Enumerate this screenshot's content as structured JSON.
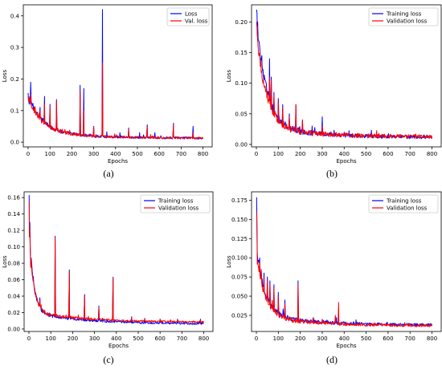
{
  "chart_data": [
    {
      "panel": "(a)",
      "type": "line",
      "xlabel": "Epochs",
      "ylabel": "Loss",
      "xlim": [
        -22,
        842
      ],
      "ylim": [
        -0.015,
        0.435
      ],
      "xticks": [
        "0",
        "100",
        "200",
        "300",
        "400",
        "500",
        "600",
        "700",
        "800"
      ],
      "yticks": [
        "0.0",
        "0.1",
        "0.2",
        "0.3",
        "0.4"
      ],
      "legend": {
        "position": "top-right",
        "entries": [
          "Loss",
          "Val. loss"
        ]
      },
      "series": [
        {
          "name": "Loss",
          "color": "#0000ff",
          "base": {
            "start": 0.13,
            "mid": 0.035,
            "end": 0.012,
            "decay": 60,
            "noise": 0.01
          },
          "spikes": [
            [
              2,
              0.135
            ],
            [
              5,
              0.12
            ],
            [
              12,
              0.19
            ],
            [
              55,
              0.11
            ],
            [
              75,
              0.145
            ],
            [
              100,
              0.12
            ],
            [
              130,
              0.135
            ],
            [
              238,
              0.18
            ],
            [
              255,
              0.17
            ],
            [
              300,
              0.05
            ],
            [
              340,
              0.42
            ],
            [
              420,
              0.03
            ],
            [
              460,
              0.045
            ],
            [
              510,
              0.03
            ],
            [
              545,
              0.055
            ],
            [
              580,
              0.03
            ],
            [
              665,
              0.06
            ],
            [
              755,
              0.05
            ]
          ]
        },
        {
          "name": "Val. loss",
          "color": "#ff0000",
          "base": {
            "start": 0.12,
            "mid": 0.034,
            "end": 0.012,
            "decay": 60,
            "noise": 0.009
          },
          "spikes": [
            [
              2,
              0.13
            ],
            [
              12,
              0.15
            ],
            [
              55,
              0.1
            ],
            [
              75,
              0.12
            ],
            [
              100,
              0.11
            ],
            [
              130,
              0.13
            ],
            [
              238,
              0.16
            ],
            [
              255,
              0.1
            ],
            [
              300,
              0.048
            ],
            [
              340,
              0.25
            ],
            [
              460,
              0.04
            ],
            [
              545,
              0.05
            ],
            [
              665,
              0.055
            ],
            [
              755,
              0.03
            ]
          ]
        }
      ]
    },
    {
      "panel": "(b)",
      "type": "line",
      "xlabel": "Epochs",
      "ylabel": "Loss",
      "xlim": [
        -22,
        842
      ],
      "ylim": [
        -0.004,
        0.228
      ],
      "xticks": [
        "0",
        "100",
        "200",
        "300",
        "400",
        "500",
        "600",
        "700",
        "800"
      ],
      "yticks": [
        "0.00",
        "0.05",
        "0.10",
        "0.15",
        "0.20"
      ],
      "legend": {
        "position": "top-right",
        "entries": [
          "Training loss",
          "Validation loss"
        ]
      },
      "series": [
        {
          "name": "Training loss",
          "color": "#0000ff",
          "base": {
            "start": 0.19,
            "mid": 0.03,
            "end": 0.011,
            "decay": 45,
            "noise": 0.008
          },
          "spikes": [
            [
              1,
              0.22
            ],
            [
              3,
              0.215
            ],
            [
              6,
              0.2
            ],
            [
              25,
              0.145
            ],
            [
              45,
              0.1
            ],
            [
              60,
              0.14
            ],
            [
              68,
              0.11
            ],
            [
              80,
              0.085
            ],
            [
              100,
              0.075
            ],
            [
              120,
              0.065
            ],
            [
              150,
              0.05
            ],
            [
              180,
              0.065
            ],
            [
              210,
              0.04
            ],
            [
              300,
              0.045
            ],
            [
              400,
              0.02
            ]
          ]
        },
        {
          "name": "Validation loss",
          "color": "#ff0000",
          "base": {
            "start": 0.17,
            "mid": 0.028,
            "end": 0.012,
            "decay": 45,
            "noise": 0.009
          },
          "spikes": [
            [
              1,
              0.2
            ],
            [
              3,
              0.19
            ],
            [
              6,
              0.17
            ],
            [
              25,
              0.12
            ],
            [
              45,
              0.09
            ],
            [
              60,
              0.11
            ],
            [
              68,
              0.105
            ],
            [
              80,
              0.08
            ],
            [
              100,
              0.07
            ],
            [
              120,
              0.06
            ],
            [
              150,
              0.045
            ],
            [
              180,
              0.065
            ],
            [
              210,
              0.04
            ],
            [
              300,
              0.03
            ]
          ]
        }
      ]
    },
    {
      "panel": "(c)",
      "type": "line",
      "xlabel": "Epochs",
      "ylabel": "Loss",
      "xlim": [
        -22,
        842
      ],
      "ylim": [
        -0.003,
        0.167
      ],
      "xticks": [
        "0",
        "100",
        "200",
        "300",
        "400",
        "500",
        "600",
        "700",
        "800"
      ],
      "yticks": [
        "0.00",
        "0.02",
        "0.04",
        "0.06",
        "0.08",
        "0.10",
        "0.12",
        "0.14",
        "0.16"
      ],
      "legend": {
        "position": "top-right",
        "entries": [
          "Training loss",
          "Validation loss"
        ]
      },
      "series": [
        {
          "name": "Training loss",
          "color": "#0000ff",
          "base": {
            "start": 0.12,
            "mid": 0.02,
            "end": 0.006,
            "decay": 20,
            "noise": 0.003
          },
          "spikes": [
            [
              1,
              0.163
            ],
            [
              4,
              0.13
            ],
            [
              8,
              0.078
            ],
            [
              15,
              0.07
            ],
            [
              25,
              0.05
            ],
            [
              50,
              0.038
            ],
            [
              120,
              0.113
            ],
            [
              185,
              0.072
            ],
            [
              255,
              0.042
            ],
            [
              320,
              0.028
            ],
            [
              385,
              0.063
            ],
            [
              470,
              0.015
            ],
            [
              530,
              0.013
            ],
            [
              600,
              0.012
            ],
            [
              680,
              0.012
            ],
            [
              785,
              0.012
            ]
          ]
        },
        {
          "name": "Validation loss",
          "color": "#ff0000",
          "base": {
            "start": 0.11,
            "mid": 0.021,
            "end": 0.008,
            "decay": 20,
            "noise": 0.003
          },
          "spikes": [
            [
              1,
              0.155
            ],
            [
              4,
              0.12
            ],
            [
              8,
              0.075
            ],
            [
              15,
              0.065
            ],
            [
              25,
              0.048
            ],
            [
              50,
              0.035
            ],
            [
              120,
              0.112
            ],
            [
              185,
              0.07
            ],
            [
              255,
              0.04
            ],
            [
              320,
              0.026
            ],
            [
              385,
              0.062
            ],
            [
              470,
              0.014
            ],
            [
              530,
              0.012
            ],
            [
              600,
              0.012
            ],
            [
              680,
              0.011
            ],
            [
              785,
              0.011
            ]
          ]
        }
      ]
    },
    {
      "panel": "(d)",
      "type": "line",
      "xlabel": "Epochs",
      "ylabel": "Loss",
      "xlim": [
        -22,
        842
      ],
      "ylim": [
        0.004,
        0.186
      ],
      "xticks": [
        "0",
        "100",
        "200",
        "300",
        "400",
        "500",
        "600",
        "700",
        "800"
      ],
      "yticks": [
        "0.025",
        "0.050",
        "0.075",
        "0.100",
        "0.125",
        "0.150",
        "0.175"
      ],
      "legend": {
        "position": "top-right",
        "entries": [
          "Training loss",
          "Validation loss"
        ]
      },
      "series": [
        {
          "name": "Training loss",
          "color": "#0000ff",
          "base": {
            "start": 0.1,
            "mid": 0.025,
            "end": 0.012,
            "decay": 40,
            "noise": 0.005
          },
          "spikes": [
            [
              1,
              0.179
            ],
            [
              3,
              0.14
            ],
            [
              8,
              0.095
            ],
            [
              15,
              0.1
            ],
            [
              22,
              0.085
            ],
            [
              35,
              0.08
            ],
            [
              50,
              0.075
            ],
            [
              62,
              0.07
            ],
            [
              80,
              0.065
            ],
            [
              100,
              0.055
            ],
            [
              130,
              0.045
            ],
            [
              190,
              0.07
            ],
            [
              260,
              0.022
            ],
            [
              300,
              0.02
            ],
            [
              365,
              0.022
            ]
          ]
        },
        {
          "name": "Validation loss",
          "color": "#ff0000",
          "base": {
            "start": 0.09,
            "mid": 0.024,
            "end": 0.011,
            "decay": 40,
            "noise": 0.005
          },
          "spikes": [
            [
              1,
              0.16
            ],
            [
              3,
              0.13
            ],
            [
              8,
              0.09
            ],
            [
              15,
              0.095
            ],
            [
              22,
              0.085
            ],
            [
              35,
              0.075
            ],
            [
              50,
              0.07
            ],
            [
              62,
              0.065
            ],
            [
              80,
              0.06
            ],
            [
              100,
              0.05
            ],
            [
              130,
              0.04
            ],
            [
              190,
              0.065
            ],
            [
              260,
              0.022
            ],
            [
              300,
              0.02
            ],
            [
              360,
              0.025
            ],
            [
              375,
              0.042
            ]
          ]
        }
      ]
    }
  ]
}
